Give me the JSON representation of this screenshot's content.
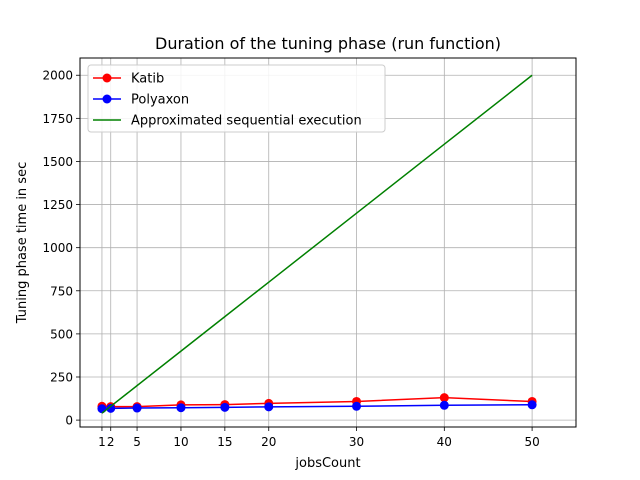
{
  "chart_data": {
    "type": "line",
    "title": "Duration of the tuning phase (run function)",
    "xlabel": "jobsCount",
    "ylabel": "Tuning phase time in sec",
    "xlim": [
      -1.5,
      55
    ],
    "ylim": [
      -40,
      2100
    ],
    "xticks": [
      1,
      2,
      5,
      10,
      15,
      20,
      30,
      40,
      50
    ],
    "yticks": [
      0,
      250,
      500,
      750,
      1000,
      1250,
      1500,
      1750,
      2000
    ],
    "grid": true,
    "legend_position": "top-left",
    "series": [
      {
        "name": "Katib",
        "color": "#ff0000",
        "marker": "circle",
        "x": [
          1,
          2,
          5,
          10,
          15,
          20,
          30,
          40,
          50
        ],
        "values": [
          80,
          78,
          78,
          88,
          90,
          97,
          108,
          130,
          108
        ]
      },
      {
        "name": "Polyaxon",
        "color": "#0000ff",
        "marker": "circle",
        "x": [
          1,
          2,
          5,
          10,
          15,
          20,
          30,
          40,
          50
        ],
        "values": [
          66,
          68,
          70,
          72,
          74,
          77,
          80,
          86,
          89
        ]
      },
      {
        "name": "Approximated sequential execution",
        "color": "#008000",
        "marker": "none",
        "x": [
          1,
          2,
          5,
          10,
          15,
          20,
          30,
          40,
          50
        ],
        "values": [
          40,
          80,
          200,
          400,
          600,
          800,
          1200,
          1600,
          2000
        ]
      }
    ]
  }
}
